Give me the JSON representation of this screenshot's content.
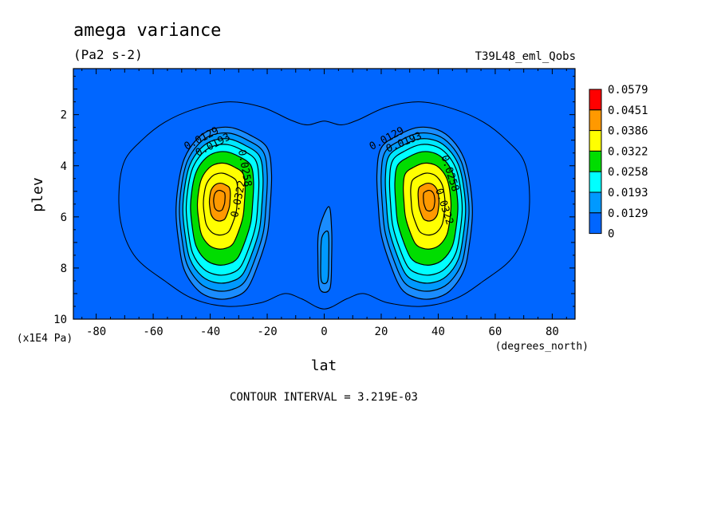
{
  "chart_data": {
    "type": "heatmap",
    "plot_kind": "filled-contour",
    "title": "amega variance",
    "units": "(Pa2 s-2)",
    "experiment": "T39L48_eml_Qobs",
    "xlabel": "lat",
    "xunits": "(degrees_north)",
    "ylabel": "plev",
    "yunits": "(x1E4 Pa)",
    "xlim": [
      -88,
      88
    ],
    "ylim": [
      10,
      0.2
    ],
    "x_ticks": [
      "-80",
      "-60",
      "-40",
      "-20",
      "0",
      "20",
      "40",
      "60",
      "80"
    ],
    "y_ticks": [
      "2",
      "4",
      "6",
      "8",
      "10"
    ],
    "contour_interval_text": "CONTOUR INTERVAL = 3.219E-03",
    "grid": false,
    "legend_position": "right",
    "colorbar": {
      "labels": [
        "0.0579",
        "0.0451",
        "0.0386",
        "0.0322",
        "0.0258",
        "0.0193",
        "0.0129",
        "0"
      ],
      "colors": [
        "#ff0000",
        "#ff9900",
        "#ffff00",
        "#00dd00",
        "#00ffff",
        "#0099ff",
        "#0066ff"
      ]
    },
    "level_colors": [
      "#0066ff",
      "#1a8cff",
      "#0099ff",
      "#00e6ff",
      "#00ffff",
      "#00dd00",
      "#00dd00",
      "#ffff00",
      "#ffff00",
      "#ff9900",
      "#ff9900"
    ],
    "contour_labels": [
      {
        "text": "0.0129",
        "lat": -43,
        "plev": 2.95,
        "angle": -28
      },
      {
        "text": "0.0193",
        "lat": -39,
        "plev": 3.2,
        "angle": -28
      },
      {
        "text": "0.0258",
        "lat": -28,
        "plev": 4.1,
        "angle": 80
      },
      {
        "text": "0.0322",
        "lat": -30,
        "plev": 5.3,
        "angle": -78
      },
      {
        "text": "0.0129",
        "lat": 22,
        "plev": 2.95,
        "angle": -28
      },
      {
        "text": "0.0193",
        "lat": 28,
        "plev": 3.1,
        "angle": -22
      },
      {
        "text": "0.0258",
        "lat": 44,
        "plev": 4.3,
        "angle": 72
      },
      {
        "text": "0.0322",
        "lat": 42,
        "plev": 5.6,
        "angle": 72
      }
    ],
    "envelope": [
      [
        -72,
        5.0
      ],
      [
        -70,
        3.8
      ],
      [
        -64,
        3.0
      ],
      [
        -56,
        2.3
      ],
      [
        -46,
        1.8
      ],
      [
        -34,
        1.5
      ],
      [
        -22,
        1.7
      ],
      [
        -12,
        2.2
      ],
      [
        -6,
        2.4
      ],
      [
        0,
        2.25
      ],
      [
        6,
        2.4
      ],
      [
        12,
        2.2
      ],
      [
        22,
        1.7
      ],
      [
        34,
        1.5
      ],
      [
        46,
        1.8
      ],
      [
        56,
        2.3
      ],
      [
        64,
        3.0
      ],
      [
        70,
        3.8
      ],
      [
        72,
        5.0
      ],
      [
        71,
        6.4
      ],
      [
        66,
        7.6
      ],
      [
        56,
        8.5
      ],
      [
        46,
        9.2
      ],
      [
        34,
        9.5
      ],
      [
        22,
        9.35
      ],
      [
        14,
        9.0
      ],
      [
        8,
        9.2
      ],
      [
        0,
        9.6
      ],
      [
        -8,
        9.2
      ],
      [
        -14,
        9.0
      ],
      [
        -22,
        9.35
      ],
      [
        -34,
        9.5
      ],
      [
        -46,
        9.2
      ],
      [
        -56,
        8.5
      ],
      [
        -66,
        7.6
      ],
      [
        -71,
        6.4
      ]
    ],
    "southern_cell": {
      "center": [
        -37,
        5.3
      ],
      "outer": [
        [
          -26,
          2.8
        ],
        [
          -20,
          3.3
        ],
        [
          -18.5,
          4.3
        ],
        [
          -19,
          5.6
        ],
        [
          -20,
          6.7
        ],
        [
          -23,
          7.8
        ],
        [
          -27,
          8.8
        ],
        [
          -32,
          9.15
        ],
        [
          -38,
          9.2
        ],
        [
          -44,
          8.9
        ],
        [
          -49,
          8.1
        ],
        [
          -51,
          7.0
        ],
        [
          -52,
          5.8
        ],
        [
          -51,
          4.6
        ],
        [
          -49,
          3.7
        ],
        [
          -45,
          3.0
        ],
        [
          -40,
          2.6
        ],
        [
          -33,
          2.5
        ]
      ],
      "scales": [
        1.0,
        0.92,
        0.84,
        0.76,
        0.66,
        0.5,
        0.36,
        0.22,
        0.12
      ],
      "colors": [
        "#1a8cff",
        "#0099ff",
        "#00e6ff",
        "#00ffff",
        "#00dd00",
        "#ffff00",
        "#ffff00",
        "#ff9900",
        "#ff9900"
      ]
    },
    "northern_cell": {
      "center": [
        37,
        5.3
      ],
      "outer": [
        [
          26,
          2.8
        ],
        [
          20,
          3.3
        ],
        [
          18.5,
          4.3
        ],
        [
          19,
          5.6
        ],
        [
          20,
          6.7
        ],
        [
          23,
          7.8
        ],
        [
          27,
          8.8
        ],
        [
          32,
          9.15
        ],
        [
          38,
          9.2
        ],
        [
          44,
          8.9
        ],
        [
          49,
          8.1
        ],
        [
          51,
          7.0
        ],
        [
          52,
          5.8
        ],
        [
          51,
          4.6
        ],
        [
          49,
          3.7
        ],
        [
          45,
          3.0
        ],
        [
          40,
          2.6
        ],
        [
          33,
          2.5
        ]
      ],
      "scales": [
        1.0,
        0.92,
        0.84,
        0.76,
        0.66,
        0.5,
        0.36,
        0.22,
        0.12
      ],
      "colors": [
        "#1a8cff",
        "#0099ff",
        "#00e6ff",
        "#00ffff",
        "#00dd00",
        "#ffff00",
        "#ffff00",
        "#ff9900",
        "#ff9900"
      ]
    },
    "equatorial_cell": [
      [
        1.6,
        5.6
      ],
      [
        2.6,
        6.5
      ],
      [
        2.6,
        7.6
      ],
      [
        2.0,
        8.8
      ],
      [
        -1.6,
        8.8
      ],
      [
        -2.2,
        7.6
      ],
      [
        -1.8,
        6.5
      ]
    ],
    "equatorial_inner": [
      [
        1.4,
        6.6
      ],
      [
        1.6,
        7.6
      ],
      [
        1.2,
        8.5
      ],
      [
        -1.0,
        8.5
      ],
      [
        -1.2,
        7.6
      ],
      [
        -0.8,
        6.8
      ]
    ]
  }
}
